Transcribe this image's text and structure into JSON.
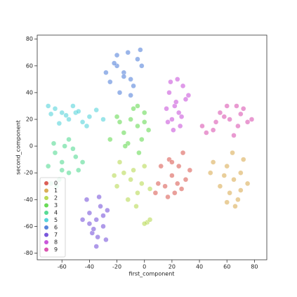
{
  "chart_data": {
    "type": "scatter",
    "x_label": "first_component",
    "y_label": "second_component",
    "xlim": [
      -78,
      89
    ],
    "ylim": [
      -85,
      83
    ],
    "xticks": [
      -60,
      -40,
      -20,
      0,
      20,
      40,
      60,
      80
    ],
    "yticks": [
      -80,
      -60,
      -40,
      -20,
      0,
      20,
      40,
      60,
      80
    ],
    "legend": "lower left",
    "series": [
      {
        "name": "0",
        "color": "#db5f57",
        "x": [
          20,
          15,
          25,
          30,
          18,
          22,
          10,
          28,
          33,
          12,
          24,
          17,
          27,
          20,
          8
        ],
        "y": [
          -22,
          -30,
          -15,
          -25,
          -10,
          -35,
          -28,
          -5,
          -18,
          -15,
          -28,
          -38,
          -32,
          -12,
          -35
        ]
      },
      {
        "name": "1",
        "color": "#dbae57",
        "x": [
          65,
          60,
          70,
          55,
          68,
          72,
          62,
          50,
          75,
          58,
          66,
          64,
          48,
          70,
          60
        ],
        "y": [
          -25,
          -15,
          -20,
          -30,
          -40,
          -10,
          -35,
          -12,
          -28,
          -22,
          -45,
          -5,
          -20,
          -33,
          -42
        ]
      },
      {
        "name": "2",
        "color": "#b9db57",
        "x": [
          -10,
          -15,
          -5,
          -20,
          0,
          -12,
          -8,
          -18,
          -2,
          -22,
          4,
          -6,
          2,
          0,
          4
        ],
        "y": [
          -25,
          -20,
          -35,
          -30,
          -15,
          -40,
          -18,
          -12,
          -28,
          -22,
          -32,
          -45,
          -57,
          -58,
          -55
        ]
      },
      {
        "name": "3",
        "color": "#69db57",
        "x": [
          -5,
          -10,
          0,
          -15,
          -2,
          -8,
          -18,
          3,
          -12,
          -5,
          -20,
          -25,
          -4,
          0,
          -14
        ],
        "y": [
          15,
          20,
          25,
          10,
          5,
          28,
          18,
          12,
          2,
          30,
          22,
          5,
          -5,
          18,
          0
        ]
      },
      {
        "name": "4",
        "color": "#57db94",
        "x": [
          -60,
          -65,
          -55,
          -70,
          -50,
          -62,
          -58,
          -68,
          -48,
          -55,
          -64,
          -52,
          -60,
          -45,
          -66
        ],
        "y": [
          -12,
          -5,
          -20,
          -15,
          -8,
          -25,
          0,
          -28,
          -18,
          5,
          -30,
          -2,
          -18,
          -12,
          2
        ]
      },
      {
        "name": "5",
        "color": "#57d3db",
        "x": [
          -50,
          -65,
          -55,
          -40,
          -70,
          -45,
          -60,
          -35,
          -52,
          -30,
          -62,
          -48,
          -42,
          -57,
          -68
        ],
        "y": [
          25,
          28,
          20,
          22,
          30,
          18,
          25,
          27,
          30,
          20,
          17,
          26,
          15,
          23,
          24
        ]
      },
      {
        "name": "6",
        "color": "#5784db",
        "x": [
          -15,
          -20,
          -10,
          -25,
          -5,
          -18,
          -12,
          -28,
          -8,
          -22,
          -3,
          -15,
          -10,
          -20,
          -2
        ],
        "y": [
          55,
          60,
          50,
          48,
          65,
          40,
          70,
          55,
          45,
          62,
          72,
          52,
          38,
          68,
          60
        ]
      },
      {
        "name": "7",
        "color": "#7957db",
        "x": [
          -35,
          -40,
          -30,
          -38,
          -32,
          -42,
          -28,
          -35,
          -45,
          -30,
          -37,
          -33,
          -40,
          -27,
          -34
        ],
        "y": [
          -55,
          -50,
          -60,
          -65,
          -45,
          -40,
          -70,
          -75,
          -55,
          -52,
          -62,
          -38,
          -58,
          -48,
          -68
        ]
      },
      {
        "name": "8",
        "color": "#c957db",
        "x": [
          22,
          18,
          25,
          28,
          20,
          30,
          16,
          24,
          26,
          21,
          32,
          19,
          27,
          23,
          17
        ],
        "y": [
          30,
          40,
          25,
          45,
          20,
          35,
          28,
          50,
          15,
          12,
          38,
          48,
          22,
          33,
          18
        ]
      },
      {
        "name": "9",
        "color": "#db57b2",
        "x": [
          62,
          55,
          68,
          72,
          50,
          60,
          75,
          45,
          65,
          58,
          78,
          52,
          67,
          42,
          70
        ],
        "y": [
          20,
          25,
          15,
          28,
          12,
          30,
          18,
          10,
          8,
          22,
          20,
          18,
          30,
          15,
          24
        ]
      }
    ]
  }
}
